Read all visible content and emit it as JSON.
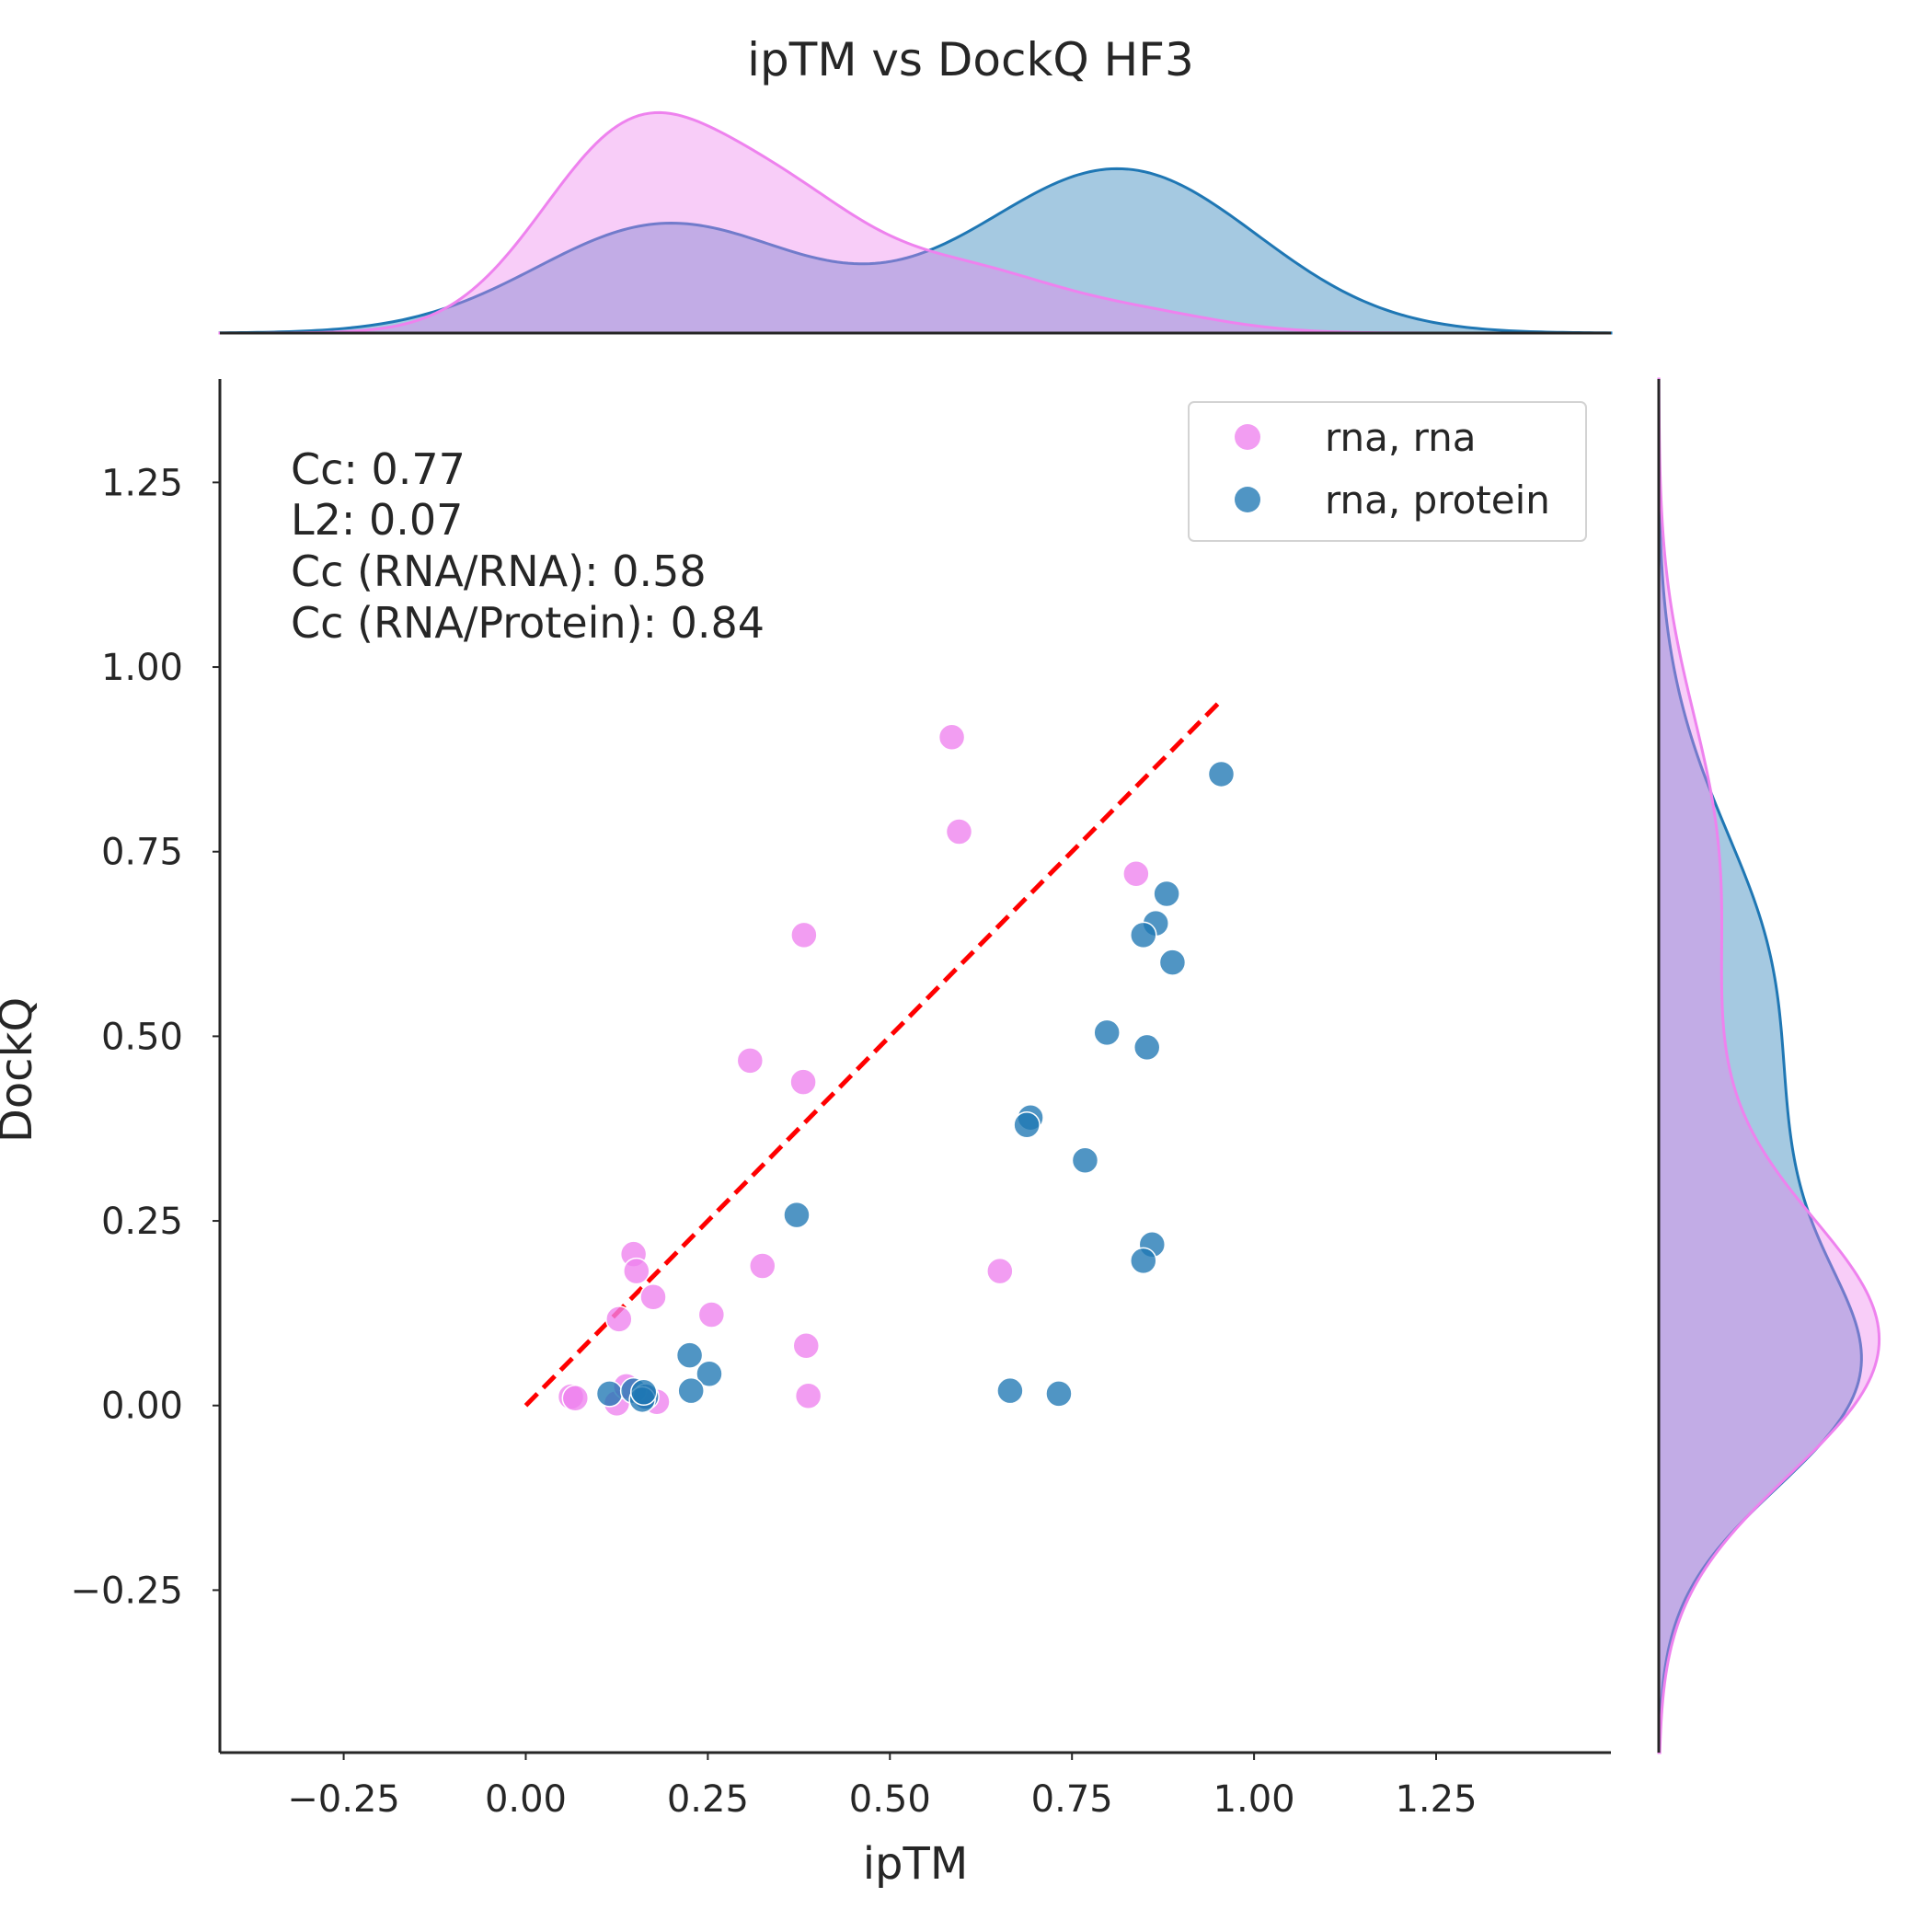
{
  "chart_data": {
    "type": "scatter",
    "title": "ipTM vs DockQ HF3",
    "xlabel": "ipTM",
    "ylabel": "DockQ",
    "xlim": [
      -0.42,
      1.49
    ],
    "ylim": [
      -0.47,
      1.39
    ],
    "x_ticks": [
      {
        "value": -0.25,
        "label": "−0.25"
      },
      {
        "value": 0.0,
        "label": "0.00"
      },
      {
        "value": 0.25,
        "label": "0.25"
      },
      {
        "value": 0.5,
        "label": "0.50"
      },
      {
        "value": 0.75,
        "label": "0.75"
      },
      {
        "value": 1.0,
        "label": "1.00"
      },
      {
        "value": 1.25,
        "label": "1.25"
      }
    ],
    "y_ticks": [
      {
        "value": -0.25,
        "label": "−0.25"
      },
      {
        "value": 0.0,
        "label": "0.00"
      },
      {
        "value": 0.25,
        "label": "0.25"
      },
      {
        "value": 0.5,
        "label": "0.50"
      },
      {
        "value": 0.75,
        "label": "0.75"
      },
      {
        "value": 1.0,
        "label": "1.00"
      },
      {
        "value": 1.25,
        "label": "1.25"
      }
    ],
    "grid": false,
    "legend_position": "top-right",
    "annotations": [
      "Cc: 0.77",
      "L2: 0.07",
      "Cc (RNA/RNA): 0.58",
      "Cc (RNA/Protein): 0.84"
    ],
    "reference_line": {
      "x": [
        0.0,
        0.95
      ],
      "y": [
        0.0,
        0.95
      ],
      "color": "#ff0000",
      "style": "dashed"
    },
    "series": [
      {
        "name": "rna, rna",
        "color": "#ee82ee",
        "points": [
          {
            "x": 0.585,
            "y": 0.905
          },
          {
            "x": 0.595,
            "y": 0.777
          },
          {
            "x": 0.382,
            "y": 0.637
          },
          {
            "x": 0.308,
            "y": 0.467
          },
          {
            "x": 0.381,
            "y": 0.438
          },
          {
            "x": 0.651,
            "y": 0.182
          },
          {
            "x": 0.325,
            "y": 0.189
          },
          {
            "x": 0.385,
            "y": 0.081
          },
          {
            "x": 0.388,
            "y": 0.013
          },
          {
            "x": 0.128,
            "y": 0.117
          },
          {
            "x": 0.148,
            "y": 0.205
          },
          {
            "x": 0.152,
            "y": 0.182
          },
          {
            "x": 0.175,
            "y": 0.147
          },
          {
            "x": 0.255,
            "y": 0.123
          },
          {
            "x": 0.838,
            "y": 0.72
          },
          {
            "x": 0.062,
            "y": 0.012
          },
          {
            "x": 0.068,
            "y": 0.01
          },
          {
            "x": 0.125,
            "y": 0.003
          },
          {
            "x": 0.138,
            "y": 0.026
          },
          {
            "x": 0.18,
            "y": 0.005
          },
          {
            "x": 0.162,
            "y": 0.012
          }
        ]
      },
      {
        "name": "rna, protein",
        "color": "#1f77b4",
        "points": [
          {
            "x": 0.955,
            "y": 0.855
          },
          {
            "x": 0.88,
            "y": 0.693
          },
          {
            "x": 0.865,
            "y": 0.653
          },
          {
            "x": 0.848,
            "y": 0.637
          },
          {
            "x": 0.888,
            "y": 0.6
          },
          {
            "x": 0.798,
            "y": 0.505
          },
          {
            "x": 0.853,
            "y": 0.485
          },
          {
            "x": 0.693,
            "y": 0.39
          },
          {
            "x": 0.688,
            "y": 0.38
          },
          {
            "x": 0.768,
            "y": 0.332
          },
          {
            "x": 0.372,
            "y": 0.258
          },
          {
            "x": 0.86,
            "y": 0.218
          },
          {
            "x": 0.848,
            "y": 0.196
          },
          {
            "x": 0.225,
            "y": 0.068
          },
          {
            "x": 0.252,
            "y": 0.043
          },
          {
            "x": 0.227,
            "y": 0.02
          },
          {
            "x": 0.665,
            "y": 0.02
          },
          {
            "x": 0.732,
            "y": 0.016
          },
          {
            "x": 0.115,
            "y": 0.016
          },
          {
            "x": 0.148,
            "y": 0.02
          },
          {
            "x": 0.165,
            "y": 0.012
          },
          {
            "x": 0.16,
            "y": 0.008
          },
          {
            "x": 0.162,
            "y": 0.018
          }
        ]
      }
    ]
  }
}
